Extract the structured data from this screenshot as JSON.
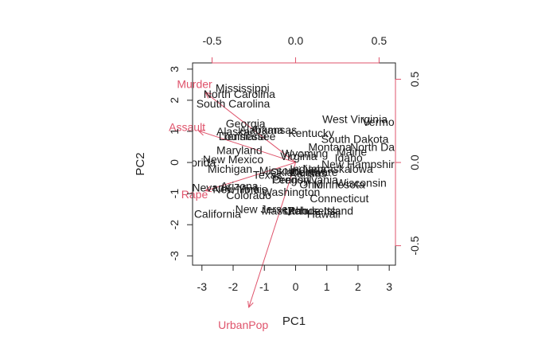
{
  "chart_data": {
    "type": "scatter",
    "title": "",
    "xlabel": "PC1",
    "ylabel": "PC2",
    "xlim": [
      -3.3,
      3.2
    ],
    "ylim": [
      -3.3,
      3.2
    ],
    "x_ticks": [
      -3,
      -2,
      -1,
      0,
      1,
      2,
      3
    ],
    "y_ticks": [
      -3,
      -2,
      -1,
      0,
      1,
      2,
      3
    ],
    "top_ticks": [
      -0.5,
      0.0,
      0.5
    ],
    "right_ticks": [
      -0.5,
      0.0,
      0.5
    ],
    "loading_scale": 5.35,
    "grid": false,
    "colors": {
      "points": "#1a1a1a",
      "loadings": "#DF536B",
      "axes": "#222222"
    },
    "states": [
      {
        "name": "Mississippi",
        "x": -1.7,
        "y": 2.4
      },
      {
        "name": "North Carolina",
        "x": -1.8,
        "y": 2.2
      },
      {
        "name": "South Carolina",
        "x": -2.0,
        "y": 1.9
      },
      {
        "name": "Georgia",
        "x": -1.6,
        "y": 1.25
      },
      {
        "name": "Alaska",
        "x": -2.0,
        "y": 1.0
      },
      {
        "name": "Alabama",
        "x": -1.1,
        "y": 1.05
      },
      {
        "name": "Arkansas",
        "x": -0.7,
        "y": 1.05
      },
      {
        "name": "Louisiana",
        "x": -1.7,
        "y": 0.85
      },
      {
        "name": "Tennessee",
        "x": -1.5,
        "y": 0.85
      },
      {
        "name": "Kentucky",
        "x": 0.5,
        "y": 0.95
      },
      {
        "name": "West Virginia",
        "x": 1.9,
        "y": 1.4
      },
      {
        "name": "Vermont",
        "x": 2.8,
        "y": 1.3
      },
      {
        "name": "South Dakota",
        "x": 1.9,
        "y": 0.75
      },
      {
        "name": "North Dakota",
        "x": 2.8,
        "y": 0.5
      },
      {
        "name": "Montana",
        "x": 1.1,
        "y": 0.5
      },
      {
        "name": "Maine",
        "x": 1.8,
        "y": 0.35
      },
      {
        "name": "Maryland",
        "x": -1.8,
        "y": 0.4
      },
      {
        "name": "Virginia",
        "x": 0.1,
        "y": 0.2
      },
      {
        "name": "Wyoming",
        "x": 0.3,
        "y": 0.3
      },
      {
        "name": "Idaho",
        "x": 1.7,
        "y": 0.15
      },
      {
        "name": "New Mexico",
        "x": -2.0,
        "y": 0.1
      },
      {
        "name": "Florida",
        "x": -3.1,
        "y": 0.0
      },
      {
        "name": "New Hampshire",
        "x": 2.1,
        "y": -0.05
      },
      {
        "name": "Michigan",
        "x": -2.1,
        "y": -0.2
      },
      {
        "name": "Indiana",
        "x": 0.4,
        "y": -0.2
      },
      {
        "name": "Nebraska",
        "x": 1.0,
        "y": -0.2
      },
      {
        "name": "Iowa",
        "x": 2.1,
        "y": -0.2
      },
      {
        "name": "Missouri",
        "x": -0.5,
        "y": -0.25
      },
      {
        "name": "Oklahoma",
        "x": 0.0,
        "y": -0.3
      },
      {
        "name": "Kansas",
        "x": 0.4,
        "y": -0.35
      },
      {
        "name": "Delaware",
        "x": 0.6,
        "y": -0.3
      },
      {
        "name": "Texas",
        "x": -0.9,
        "y": -0.4
      },
      {
        "name": "Oregon",
        "x": -0.15,
        "y": -0.55
      },
      {
        "name": "Pennsylvania",
        "x": 0.3,
        "y": -0.55
      },
      {
        "name": "Wisconsin",
        "x": 2.1,
        "y": -0.65
      },
      {
        "name": "Ohio",
        "x": 0.5,
        "y": -0.7
      },
      {
        "name": "Minnesota",
        "x": 1.4,
        "y": -0.7
      },
      {
        "name": "Arizona",
        "x": -1.8,
        "y": -0.75
      },
      {
        "name": "Illinois",
        "x": -1.4,
        "y": -0.85
      },
      {
        "name": "Nevada",
        "x": -2.7,
        "y": -0.8
      },
      {
        "name": "New York",
        "x": -1.9,
        "y": -0.85
      },
      {
        "name": "Washington",
        "x": -0.15,
        "y": -0.95
      },
      {
        "name": "Colorado",
        "x": -1.5,
        "y": -1.05
      },
      {
        "name": "Connecticut",
        "x": 1.4,
        "y": -1.15
      },
      {
        "name": "New Jersey",
        "x": -1.0,
        "y": -1.5
      },
      {
        "name": "Massachusetts",
        "x": 0.1,
        "y": -1.55
      },
      {
        "name": "Utah",
        "x": 0.0,
        "y": -1.55
      },
      {
        "name": "Rhode Island",
        "x": 0.8,
        "y": -1.55
      },
      {
        "name": "Hawaii",
        "x": 0.9,
        "y": -1.65
      },
      {
        "name": "California",
        "x": -2.5,
        "y": -1.65
      }
    ],
    "loadings": [
      {
        "name": "Murder",
        "x": -0.54,
        "y": 0.42
      },
      {
        "name": "Assault",
        "x": -0.58,
        "y": 0.19
      },
      {
        "name": "Rape",
        "x": -0.54,
        "y": -0.17
      },
      {
        "name": "UrbanPop",
        "x": -0.28,
        "y": -0.87
      }
    ]
  }
}
